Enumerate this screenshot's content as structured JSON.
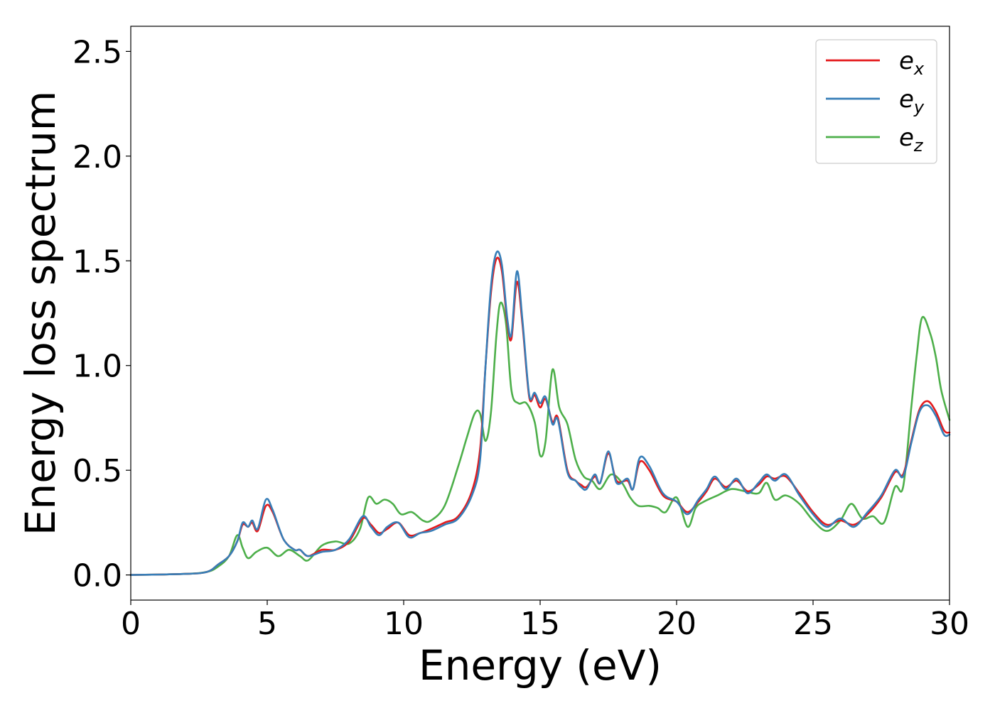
{
  "chart_data": {
    "type": "line",
    "title": "",
    "xlabel": "Energy (eV)",
    "ylabel": "Energy loss spectrum",
    "xlim": [
      0,
      30
    ],
    "ylim": [
      -0.12,
      2.62
    ],
    "xticks": [
      0,
      5,
      10,
      15,
      20,
      25,
      30
    ],
    "xtick_labels": [
      "0",
      "5",
      "10",
      "15",
      "20",
      "25",
      "30"
    ],
    "yticks": [
      0.0,
      0.5,
      1.0,
      1.5,
      2.0,
      2.5
    ],
    "ytick_labels": [
      "0.0",
      "0.5",
      "1.0",
      "1.5",
      "2.0",
      "2.5"
    ],
    "grid": false,
    "legend_position": "top-right",
    "series": [
      {
        "name": "e_x",
        "label_base": "e",
        "label_sub": "x",
        "color": "#e41a1c",
        "points": [
          [
            0,
            0
          ],
          [
            2,
            0.005
          ],
          [
            2.8,
            0.015
          ],
          [
            3.2,
            0.05
          ],
          [
            3.6,
            0.09
          ],
          [
            3.9,
            0.16
          ],
          [
            4.1,
            0.24
          ],
          [
            4.3,
            0.23
          ],
          [
            4.45,
            0.25
          ],
          [
            4.65,
            0.21
          ],
          [
            4.95,
            0.33
          ],
          [
            5.2,
            0.3
          ],
          [
            5.6,
            0.17
          ],
          [
            6.0,
            0.12
          ],
          [
            6.2,
            0.12
          ],
          [
            6.5,
            0.09
          ],
          [
            7.0,
            0.12
          ],
          [
            7.5,
            0.12
          ],
          [
            8.0,
            0.16
          ],
          [
            8.5,
            0.27
          ],
          [
            8.8,
            0.24
          ],
          [
            9.1,
            0.2
          ],
          [
            9.4,
            0.22
          ],
          [
            9.8,
            0.25
          ],
          [
            10.2,
            0.19
          ],
          [
            10.6,
            0.2
          ],
          [
            11.0,
            0.22
          ],
          [
            11.5,
            0.25
          ],
          [
            12.0,
            0.28
          ],
          [
            12.5,
            0.4
          ],
          [
            12.8,
            0.6
          ],
          [
            13.0,
            1.0
          ],
          [
            13.2,
            1.35
          ],
          [
            13.4,
            1.51
          ],
          [
            13.6,
            1.45
          ],
          [
            13.8,
            1.2
          ],
          [
            13.95,
            1.13
          ],
          [
            14.15,
            1.4
          ],
          [
            14.35,
            1.2
          ],
          [
            14.6,
            0.85
          ],
          [
            14.8,
            0.86
          ],
          [
            15.0,
            0.8
          ],
          [
            15.2,
            0.84
          ],
          [
            15.45,
            0.73
          ],
          [
            15.65,
            0.75
          ],
          [
            16.0,
            0.5
          ],
          [
            16.3,
            0.45
          ],
          [
            16.5,
            0.43
          ],
          [
            16.7,
            0.42
          ],
          [
            17.0,
            0.47
          ],
          [
            17.2,
            0.44
          ],
          [
            17.5,
            0.58
          ],
          [
            17.8,
            0.45
          ],
          [
            18.2,
            0.45
          ],
          [
            18.4,
            0.41
          ],
          [
            18.65,
            0.54
          ],
          [
            19.0,
            0.5
          ],
          [
            19.5,
            0.38
          ],
          [
            20.0,
            0.35
          ],
          [
            20.4,
            0.3
          ],
          [
            20.8,
            0.35
          ],
          [
            21.1,
            0.4
          ],
          [
            21.4,
            0.46
          ],
          [
            21.8,
            0.42
          ],
          [
            22.2,
            0.45
          ],
          [
            22.6,
            0.4
          ],
          [
            23.0,
            0.43
          ],
          [
            23.3,
            0.47
          ],
          [
            23.6,
            0.46
          ],
          [
            24.0,
            0.47
          ],
          [
            24.5,
            0.39
          ],
          [
            25.0,
            0.3
          ],
          [
            25.5,
            0.24
          ],
          [
            26.0,
            0.26
          ],
          [
            26.5,
            0.24
          ],
          [
            27.0,
            0.29
          ],
          [
            27.5,
            0.37
          ],
          [
            28.0,
            0.49
          ],
          [
            28.3,
            0.48
          ],
          [
            28.6,
            0.64
          ],
          [
            28.9,
            0.79
          ],
          [
            29.2,
            0.83
          ],
          [
            29.5,
            0.78
          ],
          [
            29.8,
            0.69
          ],
          [
            30.0,
            0.68
          ]
        ]
      },
      {
        "name": "e_y",
        "label_base": "e",
        "label_sub": "y",
        "color": "#377eb8",
        "points": [
          [
            0,
            0
          ],
          [
            2,
            0.005
          ],
          [
            2.8,
            0.015
          ],
          [
            3.2,
            0.05
          ],
          [
            3.6,
            0.09
          ],
          [
            3.9,
            0.16
          ],
          [
            4.1,
            0.25
          ],
          [
            4.3,
            0.23
          ],
          [
            4.45,
            0.26
          ],
          [
            4.65,
            0.22
          ],
          [
            4.95,
            0.36
          ],
          [
            5.2,
            0.31
          ],
          [
            5.6,
            0.17
          ],
          [
            6.0,
            0.12
          ],
          [
            6.2,
            0.12
          ],
          [
            6.5,
            0.09
          ],
          [
            7.0,
            0.11
          ],
          [
            7.5,
            0.12
          ],
          [
            8.0,
            0.17
          ],
          [
            8.5,
            0.28
          ],
          [
            8.8,
            0.23
          ],
          [
            9.1,
            0.19
          ],
          [
            9.4,
            0.23
          ],
          [
            9.8,
            0.25
          ],
          [
            10.2,
            0.18
          ],
          [
            10.6,
            0.2
          ],
          [
            11.0,
            0.21
          ],
          [
            11.5,
            0.24
          ],
          [
            12.0,
            0.27
          ],
          [
            12.5,
            0.38
          ],
          [
            12.8,
            0.55
          ],
          [
            13.0,
            1.0
          ],
          [
            13.2,
            1.38
          ],
          [
            13.4,
            1.54
          ],
          [
            13.6,
            1.48
          ],
          [
            13.8,
            1.22
          ],
          [
            13.95,
            1.15
          ],
          [
            14.15,
            1.45
          ],
          [
            14.35,
            1.22
          ],
          [
            14.6,
            0.86
          ],
          [
            14.8,
            0.87
          ],
          [
            15.0,
            0.82
          ],
          [
            15.2,
            0.85
          ],
          [
            15.45,
            0.72
          ],
          [
            15.65,
            0.74
          ],
          [
            16.0,
            0.49
          ],
          [
            16.3,
            0.45
          ],
          [
            16.5,
            0.42
          ],
          [
            16.7,
            0.41
          ],
          [
            17.0,
            0.48
          ],
          [
            17.2,
            0.44
          ],
          [
            17.5,
            0.59
          ],
          [
            17.8,
            0.44
          ],
          [
            18.2,
            0.46
          ],
          [
            18.4,
            0.41
          ],
          [
            18.65,
            0.56
          ],
          [
            19.0,
            0.52
          ],
          [
            19.5,
            0.39
          ],
          [
            20.0,
            0.35
          ],
          [
            20.4,
            0.29
          ],
          [
            20.8,
            0.36
          ],
          [
            21.1,
            0.41
          ],
          [
            21.4,
            0.47
          ],
          [
            21.8,
            0.41
          ],
          [
            22.2,
            0.46
          ],
          [
            22.6,
            0.39
          ],
          [
            23.0,
            0.44
          ],
          [
            23.3,
            0.48
          ],
          [
            23.6,
            0.45
          ],
          [
            24.0,
            0.48
          ],
          [
            24.5,
            0.38
          ],
          [
            25.0,
            0.29
          ],
          [
            25.5,
            0.23
          ],
          [
            26.0,
            0.27
          ],
          [
            26.5,
            0.23
          ],
          [
            27.0,
            0.3
          ],
          [
            27.5,
            0.38
          ],
          [
            28.0,
            0.5
          ],
          [
            28.3,
            0.47
          ],
          [
            28.6,
            0.63
          ],
          [
            28.9,
            0.78
          ],
          [
            29.2,
            0.81
          ],
          [
            29.5,
            0.76
          ],
          [
            29.8,
            0.67
          ],
          [
            30.0,
            0.67
          ]
        ]
      },
      {
        "name": "e_z",
        "label_base": "e",
        "label_sub": "z",
        "color": "#4daf4a",
        "points": [
          [
            0,
            0
          ],
          [
            2,
            0.005
          ],
          [
            2.8,
            0.015
          ],
          [
            3.2,
            0.04
          ],
          [
            3.6,
            0.09
          ],
          [
            3.9,
            0.19
          ],
          [
            4.1,
            0.13
          ],
          [
            4.3,
            0.08
          ],
          [
            4.6,
            0.11
          ],
          [
            5.0,
            0.13
          ],
          [
            5.4,
            0.09
          ],
          [
            5.8,
            0.12
          ],
          [
            6.2,
            0.09
          ],
          [
            6.5,
            0.07
          ],
          [
            7.0,
            0.14
          ],
          [
            7.5,
            0.16
          ],
          [
            8.0,
            0.15
          ],
          [
            8.4,
            0.22
          ],
          [
            8.7,
            0.37
          ],
          [
            9.0,
            0.34
          ],
          [
            9.3,
            0.36
          ],
          [
            9.6,
            0.34
          ],
          [
            9.9,
            0.29
          ],
          [
            10.3,
            0.3
          ],
          [
            10.7,
            0.26
          ],
          [
            11.0,
            0.26
          ],
          [
            11.5,
            0.33
          ],
          [
            12.0,
            0.52
          ],
          [
            12.3,
            0.65
          ],
          [
            12.6,
            0.77
          ],
          [
            12.8,
            0.77
          ],
          [
            13.0,
            0.64
          ],
          [
            13.2,
            0.78
          ],
          [
            13.4,
            1.15
          ],
          [
            13.55,
            1.3
          ],
          [
            13.75,
            1.2
          ],
          [
            13.95,
            0.88
          ],
          [
            14.2,
            0.82
          ],
          [
            14.5,
            0.82
          ],
          [
            14.8,
            0.73
          ],
          [
            15.0,
            0.57
          ],
          [
            15.2,
            0.64
          ],
          [
            15.45,
            0.98
          ],
          [
            15.7,
            0.8
          ],
          [
            16.0,
            0.72
          ],
          [
            16.3,
            0.55
          ],
          [
            16.6,
            0.47
          ],
          [
            16.9,
            0.45
          ],
          [
            17.2,
            0.41
          ],
          [
            17.6,
            0.48
          ],
          [
            18.0,
            0.44
          ],
          [
            18.3,
            0.37
          ],
          [
            18.6,
            0.33
          ],
          [
            19.0,
            0.33
          ],
          [
            19.3,
            0.32
          ],
          [
            19.6,
            0.3
          ],
          [
            20.0,
            0.37
          ],
          [
            20.4,
            0.23
          ],
          [
            20.7,
            0.32
          ],
          [
            21.0,
            0.35
          ],
          [
            21.5,
            0.38
          ],
          [
            22.0,
            0.41
          ],
          [
            22.5,
            0.4
          ],
          [
            23.0,
            0.39
          ],
          [
            23.3,
            0.44
          ],
          [
            23.6,
            0.36
          ],
          [
            24.0,
            0.38
          ],
          [
            24.5,
            0.34
          ],
          [
            25.0,
            0.26
          ],
          [
            25.5,
            0.21
          ],
          [
            26.0,
            0.26
          ],
          [
            26.4,
            0.34
          ],
          [
            26.8,
            0.27
          ],
          [
            27.2,
            0.28
          ],
          [
            27.6,
            0.25
          ],
          [
            28.0,
            0.42
          ],
          [
            28.3,
            0.42
          ],
          [
            28.6,
            0.8
          ],
          [
            28.8,
            1.05
          ],
          [
            29.0,
            1.23
          ],
          [
            29.3,
            1.15
          ],
          [
            29.5,
            1.04
          ],
          [
            29.7,
            0.88
          ],
          [
            30.0,
            0.74
          ]
        ]
      }
    ]
  }
}
